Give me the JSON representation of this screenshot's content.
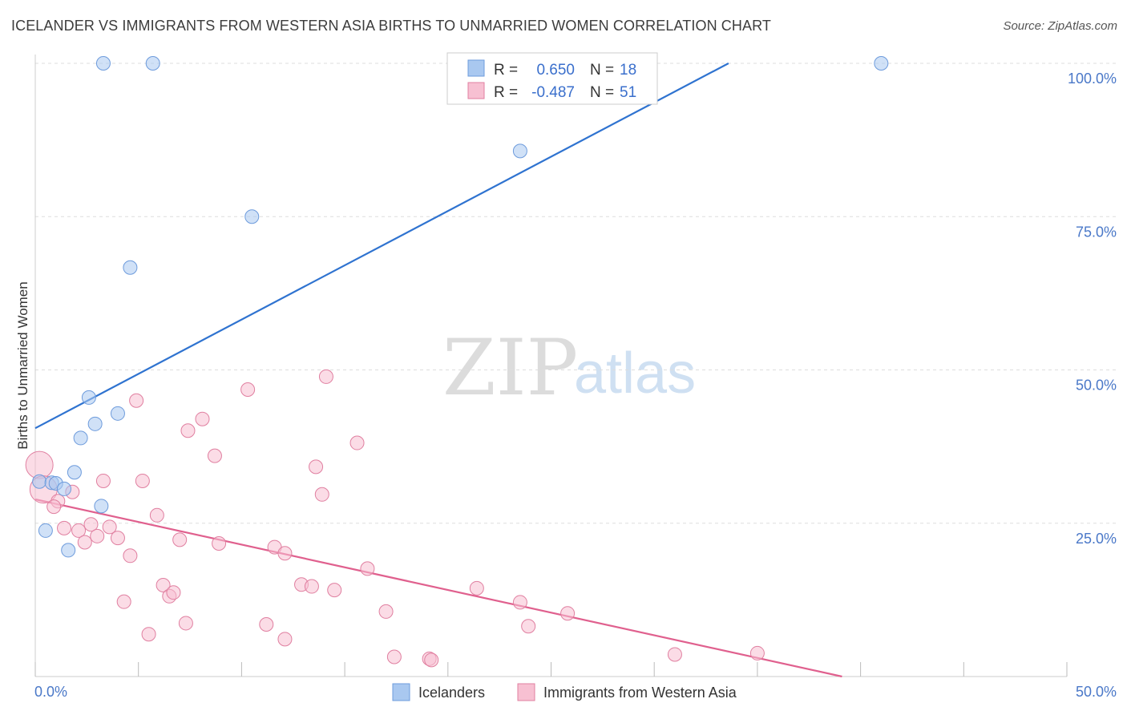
{
  "title": "ICELANDER VS IMMIGRANTS FROM WESTERN ASIA BIRTHS TO UNMARRIED WOMEN CORRELATION CHART",
  "source": "Source: ZipAtlas.com",
  "watermark": {
    "zip": "ZIP",
    "atlas": "atlas"
  },
  "legend": {
    "r_label": "R =",
    "n_label": "N =",
    "rows": [
      {
        "r": "0.650",
        "n": "18",
        "color": "#a9c8f0",
        "stroke": "#6d9bdc"
      },
      {
        "r": "-0.487",
        "n": "51",
        "color": "#f7c0d2",
        "stroke": "#e07fa0"
      }
    ]
  },
  "chart_data": {
    "type": "scatter",
    "xlabel": "",
    "ylabel": "Births to Unmarried Women",
    "xlim": [
      0,
      50
    ],
    "ylim": [
      0,
      100
    ],
    "x_tick_labels": [
      "0.0%",
      "50.0%"
    ],
    "y_tick_labels": [
      "100.0%",
      "75.0%",
      "50.0%",
      "25.0%"
    ],
    "y_ticks": [
      100,
      75,
      50,
      25
    ],
    "series": [
      {
        "name": "Icelanders",
        "color": "#a9c8f0",
        "stroke": "#6d9bdc",
        "line_color": "#2f73d0",
        "trend": {
          "x": [
            0,
            33.6
          ],
          "y": [
            40.5,
            100
          ]
        },
        "points": [
          {
            "x": 3.3,
            "y": 100
          },
          {
            "x": 5.7,
            "y": 100
          },
          {
            "x": 41.0,
            "y": 100
          },
          {
            "x": 23.5,
            "y": 85.7
          },
          {
            "x": 10.5,
            "y": 75.0
          },
          {
            "x": 4.6,
            "y": 66.7
          },
          {
            "x": 2.6,
            "y": 45.5
          },
          {
            "x": 2.9,
            "y": 41.2
          },
          {
            "x": 4.0,
            "y": 42.9
          },
          {
            "x": 2.2,
            "y": 38.9
          },
          {
            "x": 1.9,
            "y": 33.3
          },
          {
            "x": 0.2,
            "y": 31.8
          },
          {
            "x": 0.8,
            "y": 31.6
          },
          {
            "x": 1.0,
            "y": 31.5
          },
          {
            "x": 1.4,
            "y": 30.6
          },
          {
            "x": 3.2,
            "y": 27.8
          },
          {
            "x": 0.5,
            "y": 23.8
          },
          {
            "x": 1.6,
            "y": 20.6
          }
        ]
      },
      {
        "name": "Immigrants from Western Asia",
        "color": "#f7c0d2",
        "stroke": "#e07fa0",
        "line_color": "#e0608e",
        "trend": {
          "x": [
            0,
            39.1
          ],
          "y": [
            28.9,
            0
          ]
        },
        "points": [
          {
            "x": 0.2,
            "y": 34.5,
            "big": true
          },
          {
            "x": 0.4,
            "y": 30.5,
            "big": true
          },
          {
            "x": 1.1,
            "y": 28.6
          },
          {
            "x": 1.8,
            "y": 30.1
          },
          {
            "x": 0.9,
            "y": 27.7
          },
          {
            "x": 1.4,
            "y": 24.2
          },
          {
            "x": 2.1,
            "y": 23.8
          },
          {
            "x": 2.7,
            "y": 24.8
          },
          {
            "x": 3.0,
            "y": 22.9
          },
          {
            "x": 2.4,
            "y": 21.9
          },
          {
            "x": 3.6,
            "y": 24.4
          },
          {
            "x": 3.3,
            "y": 31.9
          },
          {
            "x": 4.9,
            "y": 45.0
          },
          {
            "x": 5.2,
            "y": 31.9
          },
          {
            "x": 4.6,
            "y": 19.7
          },
          {
            "x": 4.0,
            "y": 22.6
          },
          {
            "x": 5.9,
            "y": 26.3
          },
          {
            "x": 7.4,
            "y": 40.1
          },
          {
            "x": 8.1,
            "y": 42.0
          },
          {
            "x": 8.7,
            "y": 36.0
          },
          {
            "x": 7.0,
            "y": 22.3
          },
          {
            "x": 8.9,
            "y": 21.7
          },
          {
            "x": 10.3,
            "y": 46.8
          },
          {
            "x": 11.6,
            "y": 21.1
          },
          {
            "x": 12.1,
            "y": 20.1
          },
          {
            "x": 14.1,
            "y": 48.9
          },
          {
            "x": 13.6,
            "y": 34.2
          },
          {
            "x": 13.9,
            "y": 29.7
          },
          {
            "x": 15.6,
            "y": 38.1
          },
          {
            "x": 16.1,
            "y": 17.6
          },
          {
            "x": 6.2,
            "y": 14.9
          },
          {
            "x": 6.5,
            "y": 13.1
          },
          {
            "x": 6.7,
            "y": 13.7
          },
          {
            "x": 4.3,
            "y": 12.2
          },
          {
            "x": 7.3,
            "y": 8.7
          },
          {
            "x": 5.5,
            "y": 6.9
          },
          {
            "x": 11.2,
            "y": 8.5
          },
          {
            "x": 12.1,
            "y": 6.1
          },
          {
            "x": 12.9,
            "y": 15.0
          },
          {
            "x": 13.4,
            "y": 14.7
          },
          {
            "x": 14.5,
            "y": 14.1
          },
          {
            "x": 17.0,
            "y": 10.6
          },
          {
            "x": 17.4,
            "y": 3.2
          },
          {
            "x": 19.1,
            "y": 2.9
          },
          {
            "x": 19.2,
            "y": 2.7
          },
          {
            "x": 21.4,
            "y": 14.4
          },
          {
            "x": 23.5,
            "y": 12.1
          },
          {
            "x": 23.9,
            "y": 8.2
          },
          {
            "x": 25.8,
            "y": 10.3
          },
          {
            "x": 31.0,
            "y": 3.6
          },
          {
            "x": 35.0,
            "y": 3.8
          }
        ]
      }
    ]
  }
}
